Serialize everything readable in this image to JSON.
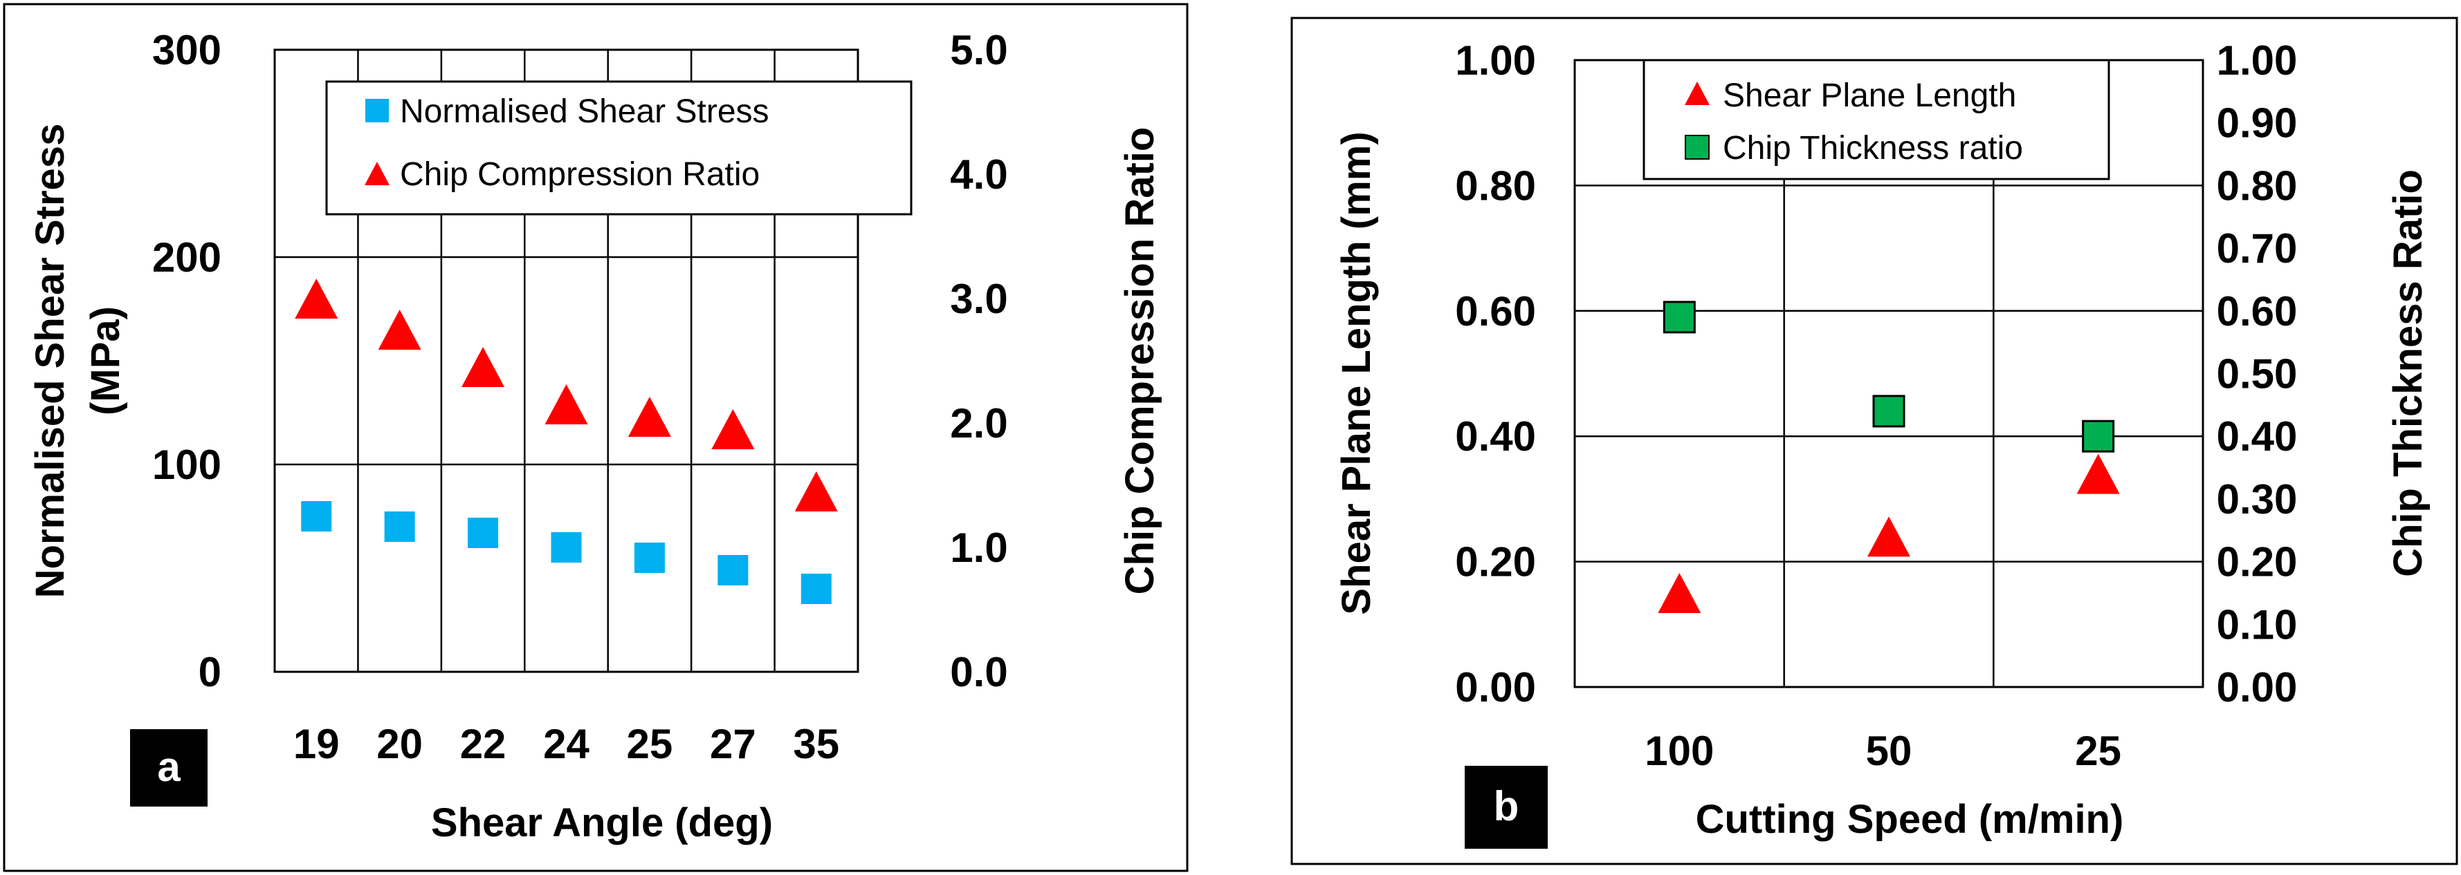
{
  "chart_data": [
    {
      "type": "scatter",
      "panel_label": "a",
      "xlabel": "Shear Angle (deg)",
      "ylabel": "Normalised Shear Stress (MPa)",
      "ylabel_lines": [
        "Normalised Shear Stress",
        "(MPa)"
      ],
      "y2label": "Chip Compression Ratio",
      "categories": [
        "19",
        "20",
        "22",
        "24",
        "25",
        "27",
        "35"
      ],
      "ylim": [
        0,
        300
      ],
      "y2lim": [
        0,
        5
      ],
      "yticks": [
        "0",
        "100",
        "200",
        "300"
      ],
      "y2ticks": [
        "0.0",
        "1.0",
        "2.0",
        "3.0",
        "4.0",
        "5.0"
      ],
      "grid": "horizontal and vertical",
      "legend_position": "top",
      "series": [
        {
          "name": "Normalised Shear Stress",
          "axis": "left",
          "marker": "square",
          "color": "#00B0F0",
          "values": [
            75,
            70,
            67,
            60,
            55,
            49,
            40
          ]
        },
        {
          "name": "Chip Compression Ratio",
          "axis": "right",
          "marker": "triangle",
          "color": "#FF0000",
          "values": [
            3.0,
            2.75,
            2.45,
            2.15,
            2.05,
            1.95,
            1.45
          ]
        }
      ]
    },
    {
      "type": "scatter",
      "panel_label": "b",
      "xlabel": "Cutting Speed (m/min)",
      "ylabel": "Shear Plane Length (mm)",
      "y2label": "Chip Thickness Ratio",
      "categories": [
        "100",
        "50",
        "25"
      ],
      "ylim": [
        0,
        1
      ],
      "y2lim": [
        0,
        1
      ],
      "yticks": [
        "0.00",
        "0.20",
        "0.40",
        "0.60",
        "0.80",
        "1.00"
      ],
      "y2ticks": [
        "0.00",
        "0.10",
        "0.20",
        "0.30",
        "0.40",
        "0.50",
        "0.60",
        "0.70",
        "0.80",
        "0.90",
        "1.00"
      ],
      "grid": "horizontal and vertical",
      "legend_position": "top",
      "series": [
        {
          "name": "Shear Plane Length",
          "axis": "left",
          "marker": "triangle",
          "color": "#FF0000",
          "values": [
            0.15,
            0.24,
            0.34
          ]
        },
        {
          "name": "Chip Thickness ratio",
          "axis": "right",
          "marker": "square",
          "color": "#00B050",
          "values": [
            0.59,
            0.44,
            0.4
          ]
        }
      ]
    }
  ]
}
